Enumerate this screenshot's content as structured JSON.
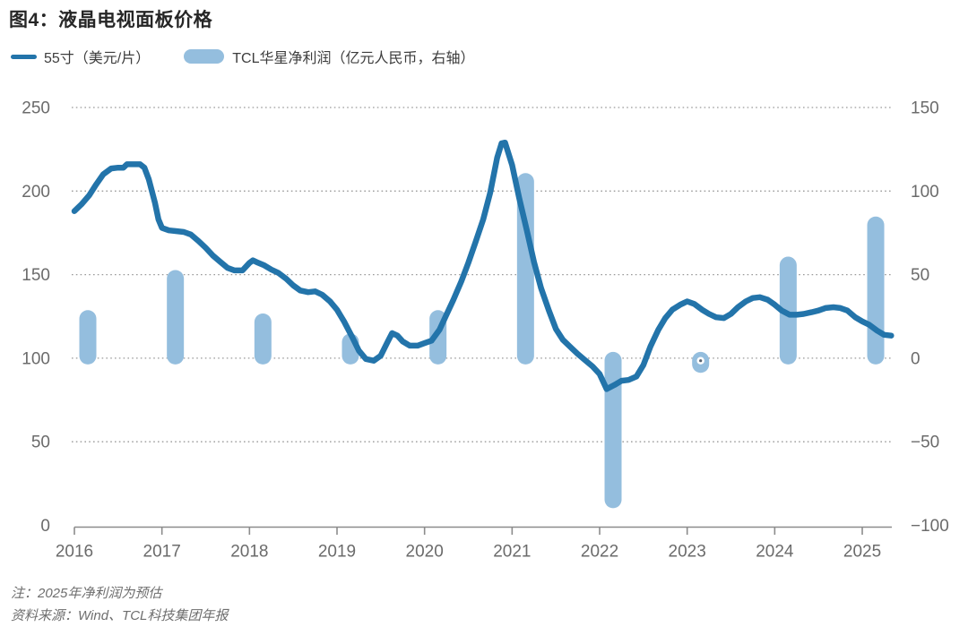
{
  "title": "图4：液晶电视面板价格",
  "legend": {
    "line_label": "55寸（美元/片）",
    "bar_label": "TCL华星净利润（亿元人民币，右轴）"
  },
  "notes": {
    "note_line": "注：2025年净利润为预估",
    "source_line": "资料来源：Wind、TCL科技集团年报"
  },
  "colors": {
    "line": "#2374aa",
    "bar": "#94bede",
    "axis_text": "#6b6b6b",
    "axis_line": "#8c8c8c",
    "gridline": "#9a9a9a",
    "title_text": "#262626",
    "note_text": "#6e6e6e"
  },
  "chart_data": {
    "type": "line+bar combo, dual axis",
    "title": "图4：液晶电视面板价格",
    "left_axis": {
      "label": "55寸面板价格（美元/片）",
      "ticks": [
        250,
        200,
        150,
        100,
        50,
        0
      ],
      "range": [
        0,
        250
      ]
    },
    "right_axis": {
      "label": "TCL华星净利润（亿元人民币）",
      "ticks": [
        150,
        100,
        50,
        0,
        -50,
        -100
      ],
      "range": [
        -100,
        150
      ]
    },
    "x_axis": {
      "ticks": [
        2016,
        2017,
        2018,
        2019,
        2020,
        2021,
        2022,
        2023,
        2024,
        2025
      ],
      "range": [
        2016,
        2025.4
      ]
    },
    "grid": "horizontal dotted gridlines at left-axis 50,100,150,200,250",
    "legend_position": "top-left",
    "series": [
      {
        "name": "55寸（美元/片）",
        "type": "line",
        "axis": "left",
        "x": [
          2016.0,
          2016.08,
          2016.17,
          2016.25,
          2016.33,
          2016.42,
          2016.5,
          2016.56,
          2016.6,
          2016.75,
          2016.8,
          2016.85,
          2016.92,
          2016.96,
          2017.0,
          2017.08,
          2017.17,
          2017.25,
          2017.33,
          2017.42,
          2017.5,
          2017.58,
          2017.67,
          2017.75,
          2017.83,
          2017.92,
          2018.0,
          2018.04,
          2018.08,
          2018.17,
          2018.25,
          2018.33,
          2018.42,
          2018.5,
          2018.58,
          2018.67,
          2018.75,
          2018.83,
          2018.92,
          2019.0,
          2019.08,
          2019.17,
          2019.25,
          2019.33,
          2019.42,
          2019.5,
          2019.58,
          2019.63,
          2019.69,
          2019.75,
          2019.83,
          2019.92,
          2020.0,
          2020.08,
          2020.17,
          2020.25,
          2020.33,
          2020.42,
          2020.5,
          2020.58,
          2020.67,
          2020.75,
          2020.83,
          2020.88,
          2020.92,
          2021.0,
          2021.08,
          2021.17,
          2021.25,
          2021.33,
          2021.42,
          2021.5,
          2021.58,
          2021.67,
          2021.75,
          2021.83,
          2021.92,
          2022.0,
          2022.08,
          2022.17,
          2022.25,
          2022.33,
          2022.42,
          2022.5,
          2022.58,
          2022.67,
          2022.75,
          2022.83,
          2022.92,
          2023.0,
          2023.08,
          2023.17,
          2023.25,
          2023.33,
          2023.42,
          2023.5,
          2023.58,
          2023.67,
          2023.75,
          2023.83,
          2023.92,
          2024.0,
          2024.08,
          2024.17,
          2024.25,
          2024.33,
          2024.42,
          2024.5,
          2024.58,
          2024.67,
          2024.75,
          2024.83,
          2024.92,
          2025.0,
          2025.08,
          2025.17,
          2025.25,
          2025.33
        ],
        "y": [
          188,
          192,
          197.5,
          204,
          210,
          213.5,
          214,
          214,
          216,
          216,
          214,
          207,
          193,
          183,
          178,
          176.5,
          176,
          175.5,
          174,
          170,
          166,
          161.5,
          157.5,
          154,
          152.5,
          152.5,
          157,
          158.5,
          157.5,
          155.5,
          153,
          151,
          147.5,
          143.5,
          140.5,
          139.5,
          140,
          138,
          134,
          129,
          122,
          113,
          104.5,
          99.5,
          98.5,
          101.5,
          110,
          115,
          113.5,
          110,
          107.5,
          107.5,
          109,
          110.5,
          117,
          126,
          135,
          146,
          157,
          169,
          183,
          199,
          220,
          228.5,
          229,
          215.5,
          196,
          176,
          157.5,
          142,
          128.5,
          117.5,
          111,
          106.5,
          102.5,
          99,
          95,
          90.5,
          81.5,
          84,
          86.5,
          87,
          89,
          96,
          107,
          117,
          124,
          129,
          132,
          134,
          132.5,
          129,
          126.5,
          124.5,
          124,
          126.5,
          130.5,
          134,
          136,
          136.5,
          135,
          132,
          128.5,
          126,
          126,
          126.5,
          127.5,
          128.5,
          130,
          130.5,
          130,
          128.5,
          124.5,
          122,
          120,
          116.5,
          114,
          113.5
        ]
      },
      {
        "name": "TCL华星净利润（亿元人民币，右轴）",
        "type": "bar",
        "axis": "right",
        "categories": [
          2016,
          2017,
          2018,
          2019,
          2020,
          2021,
          2022,
          2023,
          2024,
          2025
        ],
        "values": [
          25,
          49,
          23,
          11,
          25,
          107,
          -86,
          -5,
          57,
          81
        ]
      }
    ],
    "annotations": [
      "2025年净利润为预估"
    ]
  }
}
